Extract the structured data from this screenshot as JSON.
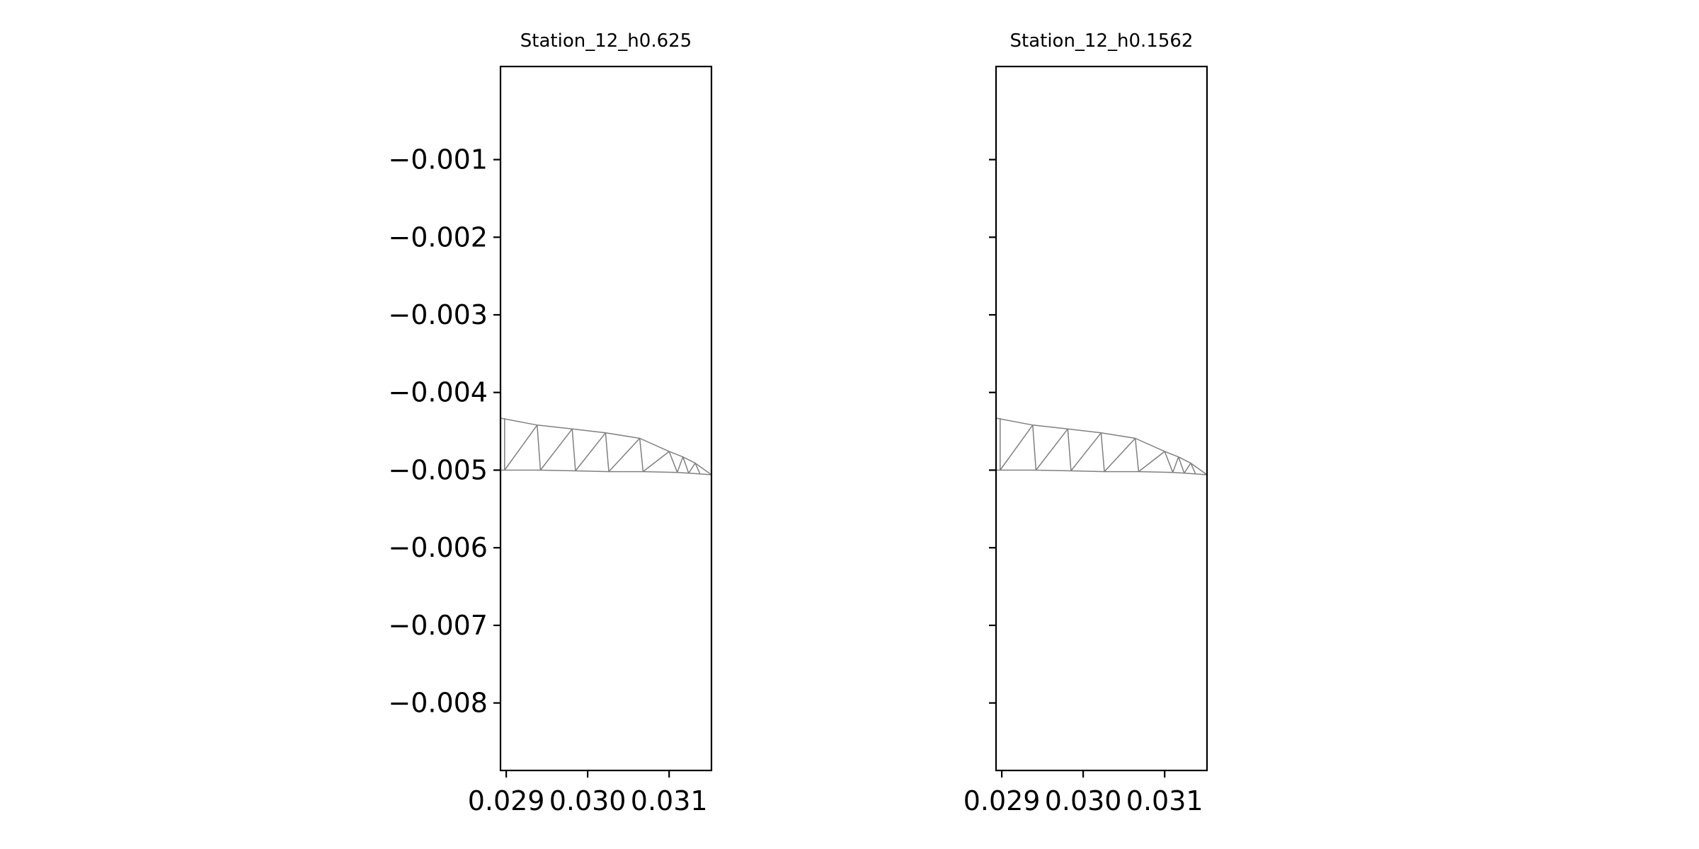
{
  "chart_data": [
    {
      "type": "mesh",
      "title": "Station_12_h0.625",
      "xlabel": "",
      "ylabel": "",
      "xlim": [
        0.02893,
        0.03152
      ],
      "ylim": [
        -0.00887,
        0.0002
      ],
      "x_ticks": [
        {
          "value": 0.029,
          "label": "0.029"
        },
        {
          "value": 0.03,
          "label": "0.030"
        },
        {
          "value": 0.031,
          "label": "0.031"
        }
      ],
      "y_ticks": [
        {
          "value": -0.001,
          "label": "−0.001"
        },
        {
          "value": -0.002,
          "label": "−0.002"
        },
        {
          "value": -0.003,
          "label": "−0.003"
        },
        {
          "value": -0.004,
          "label": "−0.004"
        },
        {
          "value": -0.005,
          "label": "−0.005"
        },
        {
          "value": -0.006,
          "label": "−0.006"
        },
        {
          "value": -0.007,
          "label": "−0.007"
        },
        {
          "value": -0.008,
          "label": "−0.008"
        }
      ],
      "show_y_tick_labels": true,
      "grid": false,
      "mesh_color": "#808080",
      "top_edge": [
        [
          0.02893,
          -0.00433
        ],
        [
          0.02938,
          -0.00442
        ],
        [
          0.02981,
          -0.00447
        ],
        [
          0.03022,
          -0.00452
        ],
        [
          0.03064,
          -0.00459
        ],
        [
          0.031,
          -0.00476
        ],
        [
          0.03117,
          -0.00483
        ],
        [
          0.03132,
          -0.00491
        ],
        [
          0.03152,
          -0.00506
        ]
      ],
      "bottom_edge": [
        [
          0.02893,
          -0.005
        ],
        [
          0.02898,
          -0.005
        ],
        [
          0.02942,
          -0.005
        ],
        [
          0.02985,
          -0.00501
        ],
        [
          0.03026,
          -0.00502
        ],
        [
          0.03068,
          -0.00502
        ],
        [
          0.0311,
          -0.00503
        ],
        [
          0.03124,
          -0.00504
        ],
        [
          0.03138,
          -0.00505
        ],
        [
          0.03152,
          -0.00506
        ]
      ],
      "diagonals": [
        [
          [
            0.02898,
            -0.00433
          ],
          [
            0.02898,
            -0.005
          ]
        ],
        [
          [
            0.02898,
            -0.005
          ],
          [
            0.02938,
            -0.00442
          ]
        ],
        [
          [
            0.02938,
            -0.00442
          ],
          [
            0.02942,
            -0.005
          ]
        ],
        [
          [
            0.02942,
            -0.005
          ],
          [
            0.02981,
            -0.00447
          ]
        ],
        [
          [
            0.02981,
            -0.00447
          ],
          [
            0.02985,
            -0.00501
          ]
        ],
        [
          [
            0.02985,
            -0.00501
          ],
          [
            0.03022,
            -0.00452
          ]
        ],
        [
          [
            0.03022,
            -0.00452
          ],
          [
            0.03026,
            -0.00502
          ]
        ],
        [
          [
            0.03026,
            -0.00502
          ],
          [
            0.03064,
            -0.00459
          ]
        ],
        [
          [
            0.03064,
            -0.00459
          ],
          [
            0.03068,
            -0.00502
          ]
        ],
        [
          [
            0.03068,
            -0.00502
          ],
          [
            0.031,
            -0.00476
          ]
        ],
        [
          [
            0.031,
            -0.00476
          ],
          [
            0.0311,
            -0.00503
          ]
        ],
        [
          [
            0.0311,
            -0.00503
          ],
          [
            0.03117,
            -0.00483
          ]
        ],
        [
          [
            0.03117,
            -0.00483
          ],
          [
            0.03124,
            -0.00504
          ]
        ],
        [
          [
            0.03124,
            -0.00504
          ],
          [
            0.03132,
            -0.00491
          ]
        ],
        [
          [
            0.03132,
            -0.00491
          ],
          [
            0.03138,
            -0.00505
          ]
        ]
      ]
    },
    {
      "type": "mesh",
      "title": "Station_12_h0.1562",
      "xlabel": "",
      "ylabel": "",
      "xlim": [
        0.02893,
        0.03152
      ],
      "ylim": [
        -0.00887,
        0.0002
      ],
      "x_ticks": [
        {
          "value": 0.029,
          "label": "0.029"
        },
        {
          "value": 0.03,
          "label": "0.030"
        },
        {
          "value": 0.031,
          "label": "0.031"
        }
      ],
      "y_ticks": [
        {
          "value": -0.001,
          "label": "−0.001"
        },
        {
          "value": -0.002,
          "label": "−0.002"
        },
        {
          "value": -0.003,
          "label": "−0.003"
        },
        {
          "value": -0.004,
          "label": "−0.004"
        },
        {
          "value": -0.005,
          "label": "−0.005"
        },
        {
          "value": -0.006,
          "label": "−0.006"
        },
        {
          "value": -0.007,
          "label": "−0.007"
        },
        {
          "value": -0.008,
          "label": "−0.008"
        }
      ],
      "show_y_tick_labels": false,
      "grid": false,
      "mesh_color": "#808080",
      "top_edge": [
        [
          0.02893,
          -0.00433
        ],
        [
          0.02938,
          -0.00442
        ],
        [
          0.02981,
          -0.00447
        ],
        [
          0.03022,
          -0.00452
        ],
        [
          0.03064,
          -0.00459
        ],
        [
          0.031,
          -0.00476
        ],
        [
          0.03117,
          -0.00483
        ],
        [
          0.03132,
          -0.00491
        ],
        [
          0.03152,
          -0.00506
        ]
      ],
      "bottom_edge": [
        [
          0.02893,
          -0.005
        ],
        [
          0.02898,
          -0.005
        ],
        [
          0.02942,
          -0.005
        ],
        [
          0.02985,
          -0.00501
        ],
        [
          0.03026,
          -0.00502
        ],
        [
          0.03068,
          -0.00502
        ],
        [
          0.0311,
          -0.00503
        ],
        [
          0.03124,
          -0.00504
        ],
        [
          0.03138,
          -0.00505
        ],
        [
          0.03152,
          -0.00506
        ]
      ],
      "diagonals": [
        [
          [
            0.02898,
            -0.00433
          ],
          [
            0.02898,
            -0.005
          ]
        ],
        [
          [
            0.02898,
            -0.005
          ],
          [
            0.02938,
            -0.00442
          ]
        ],
        [
          [
            0.02938,
            -0.00442
          ],
          [
            0.02942,
            -0.005
          ]
        ],
        [
          [
            0.02942,
            -0.005
          ],
          [
            0.02981,
            -0.00447
          ]
        ],
        [
          [
            0.02981,
            -0.00447
          ],
          [
            0.02985,
            -0.00501
          ]
        ],
        [
          [
            0.02985,
            -0.00501
          ],
          [
            0.03022,
            -0.00452
          ]
        ],
        [
          [
            0.03022,
            -0.00452
          ],
          [
            0.03026,
            -0.00502
          ]
        ],
        [
          [
            0.03026,
            -0.00502
          ],
          [
            0.03064,
            -0.00459
          ]
        ],
        [
          [
            0.03064,
            -0.00459
          ],
          [
            0.03068,
            -0.00502
          ]
        ],
        [
          [
            0.03068,
            -0.00502
          ],
          [
            0.031,
            -0.00476
          ]
        ],
        [
          [
            0.031,
            -0.00476
          ],
          [
            0.0311,
            -0.00503
          ]
        ],
        [
          [
            0.0311,
            -0.00503
          ],
          [
            0.03117,
            -0.00483
          ]
        ],
        [
          [
            0.03117,
            -0.00483
          ],
          [
            0.03124,
            -0.00504
          ]
        ],
        [
          [
            0.03124,
            -0.00504
          ],
          [
            0.03132,
            -0.00491
          ]
        ],
        [
          [
            0.03132,
            -0.00491
          ],
          [
            0.03138,
            -0.00505
          ]
        ]
      ]
    }
  ]
}
